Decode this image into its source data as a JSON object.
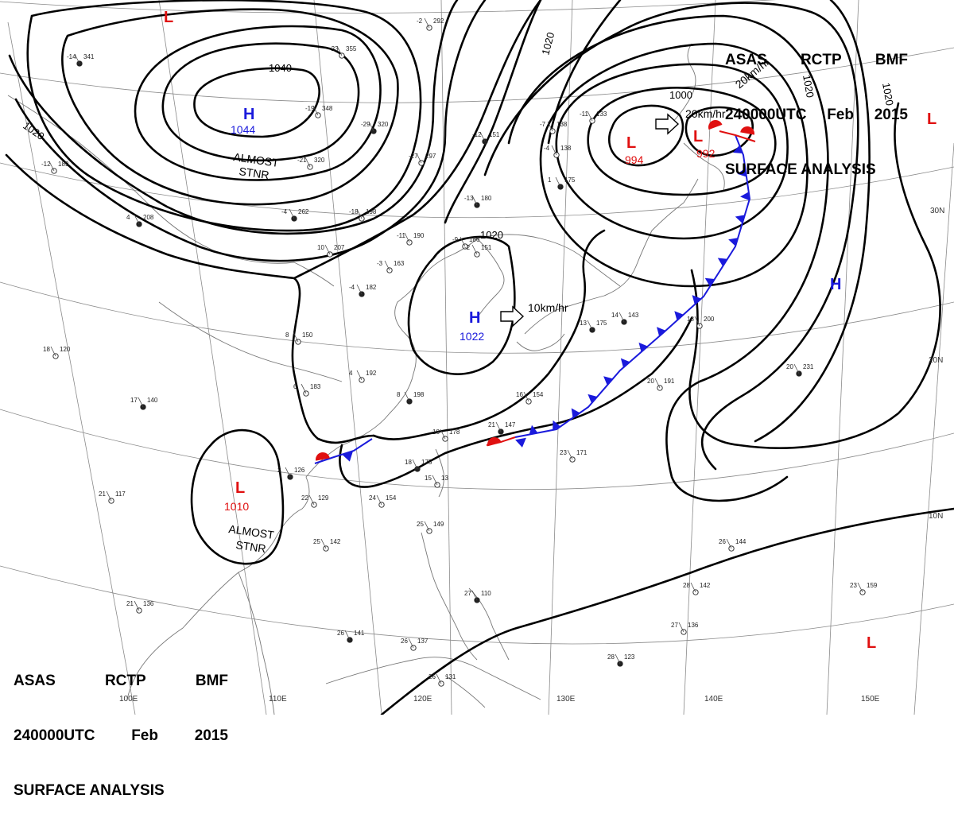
{
  "header": {
    "line1": [
      "ASAS",
      "RCTP",
      "BMF"
    ],
    "line2": [
      "240000UTC",
      "Feb",
      "2015"
    ],
    "line3": "SURFACE ANALYSIS"
  },
  "colors": {
    "high": "#1a1adc",
    "low": "#e01010",
    "cold_front": "#1a1adc",
    "warm_front": "#e01010",
    "isobar": "#000000",
    "grid": "#8a8a8a"
  },
  "pressure_centers": [
    {
      "type": "H",
      "value": "1044",
      "note": [
        "ALMOST",
        "STNR"
      ]
    },
    {
      "type": "H",
      "value": "1022",
      "note": []
    },
    {
      "type": "H",
      "value": "",
      "note": []
    },
    {
      "type": "L",
      "value": "994",
      "note": []
    },
    {
      "type": "L",
      "value": "992",
      "note": []
    },
    {
      "type": "L",
      "value": "1010",
      "note": [
        "ALMOST",
        "STNR"
      ]
    },
    {
      "type": "L",
      "value": "",
      "note": []
    },
    {
      "type": "L",
      "value": "",
      "note": []
    },
    {
      "type": "L",
      "value": "",
      "note": []
    }
  ],
  "isobar_labels": [
    "1040",
    "1020",
    "1020",
    "1020",
    "1000",
    "1020",
    "1020"
  ],
  "movement_labels": [
    "10km/hr",
    "20km/hr",
    "20km/hr"
  ],
  "longitude_labels": [
    "100E",
    "110E",
    "120E",
    "130E",
    "140E",
    "150E"
  ],
  "latitude_labels": [
    "30N",
    "20N",
    "10N"
  ],
  "station_samples": [
    {
      "t": "-14",
      "p": "341"
    },
    {
      "t": "-23",
      "p": "355"
    },
    {
      "t": "-19",
      "p": "348"
    },
    {
      "t": "-29",
      "p": "320"
    },
    {
      "t": "-27",
      "p": "297"
    },
    {
      "t": "-21",
      "p": "320"
    },
    {
      "t": "-4",
      "p": "262"
    },
    {
      "t": "-18",
      "p": "198"
    },
    {
      "t": "-11",
      "p": "190"
    },
    {
      "t": "-13",
      "p": "180"
    },
    {
      "t": "-9",
      "p": "186"
    },
    {
      "t": "-3",
      "p": "163"
    },
    {
      "t": "-4",
      "p": "182"
    },
    {
      "t": "8",
      "p": "150"
    },
    {
      "t": "4",
      "p": "192"
    },
    {
      "t": "8",
      "p": "198"
    },
    {
      "t": "6",
      "p": "183"
    },
    {
      "t": "16",
      "p": "154"
    },
    {
      "t": "21",
      "p": "147"
    },
    {
      "t": "23",
      "p": "171"
    },
    {
      "t": "18",
      "p": "178"
    },
    {
      "t": "18",
      "p": "175"
    },
    {
      "t": "24",
      "p": "154"
    },
    {
      "t": "22",
      "p": "129"
    },
    {
      "t": "2",
      "p": "126"
    },
    {
      "t": "25",
      "p": "142"
    },
    {
      "t": "25",
      "p": "149"
    },
    {
      "t": "26",
      "p": "141"
    },
    {
      "t": "26",
      "p": "137"
    },
    {
      "t": "26",
      "p": "131"
    },
    {
      "t": "28",
      "p": "123"
    },
    {
      "t": "27",
      "p": "136"
    },
    {
      "t": "26",
      "p": "144"
    },
    {
      "t": "20",
      "p": "231"
    },
    {
      "t": "18",
      "p": "200"
    },
    {
      "t": "20",
      "p": "191"
    },
    {
      "t": "14",
      "p": "143"
    },
    {
      "t": "21",
      "p": "117"
    },
    {
      "t": "18",
      "p": "120"
    },
    {
      "t": "17",
      "p": "140"
    },
    {
      "t": "21",
      "p": "136"
    },
    {
      "t": "-12",
      "p": "189"
    },
    {
      "t": "4",
      "p": "208"
    },
    {
      "t": "10",
      "p": "207"
    },
    {
      "t": "-2",
      "p": "151"
    },
    {
      "t": "-12",
      "p": "151"
    },
    {
      "t": "-7",
      "p": "138"
    },
    {
      "t": "-4",
      "p": "138"
    },
    {
      "t": "1",
      "p": "175"
    },
    {
      "t": "-2",
      "p": "292"
    },
    {
      "t": "-11",
      "p": "133"
    },
    {
      "t": "13",
      "p": "175"
    },
    {
      "t": "15",
      "p": "13"
    },
    {
      "t": "23",
      "p": "159"
    },
    {
      "t": "27",
      "p": "110"
    },
    {
      "t": "28",
      "p": "142"
    },
    {
      "t": "26",
      "p": "144"
    }
  ]
}
